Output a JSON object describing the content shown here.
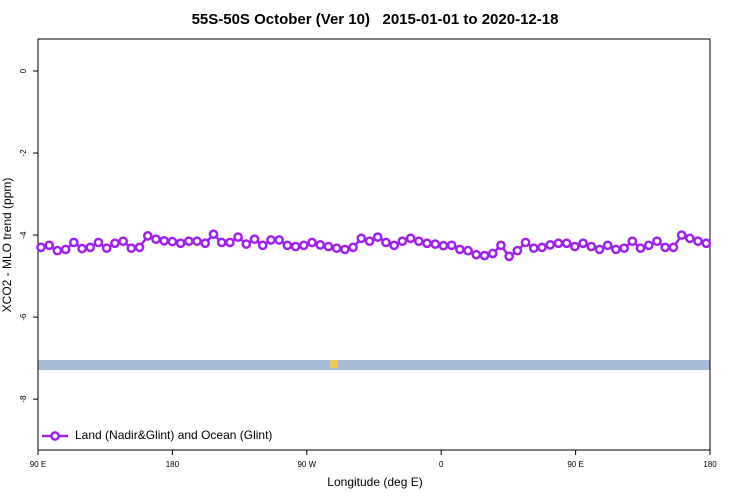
{
  "chart_data": {
    "type": "line",
    "title": "55S-50S October (Ver 10)   2015-01-01 to 2020-12-18",
    "xlabel": "Longitude (deg E)",
    "ylabel": "XCO2 - MLO trend (ppm)",
    "xlim": [
      90,
      540
    ],
    "xticks": [
      {
        "value": 90,
        "label": "90 E"
      },
      180,
      {
        "value": 270,
        "label": "90 W"
      },
      {
        "value": 360,
        "label": "0"
      },
      {
        "value": 450,
        "label": "90 E"
      },
      {
        "value": 540,
        "label": "180"
      }
    ],
    "ylim": [
      -9.24,
      0.78
    ],
    "yticks": [
      0,
      -2,
      -4,
      -6,
      -8
    ],
    "legend": "bottom-left",
    "x": [
      92,
      97.5,
      103,
      108.5,
      114,
      119.5,
      125,
      130.5,
      136,
      141.5,
      147,
      152.5,
      158,
      163.5,
      169,
      174.5,
      180,
      185.5,
      191,
      196.5,
      202,
      207.5,
      213,
      218.5,
      224,
      229.5,
      235,
      240.5,
      246,
      251.5,
      257,
      262.5,
      268,
      273.5,
      279,
      284.5,
      290,
      295.5,
      301,
      306.5,
      312,
      317.5,
      323,
      328.5,
      334,
      339.5,
      345,
      350.5,
      356,
      361.5,
      367,
      372.5,
      378,
      383.5,
      389,
      394.5,
      400,
      405.5,
      411,
      416.5,
      422,
      427.5,
      433,
      438.5,
      444,
      449.5,
      455,
      460.5,
      466,
      471.5,
      477,
      482.5,
      488,
      493.5,
      499,
      504.5,
      510,
      515.5,
      521,
      526.5,
      532,
      537.5
    ],
    "series": [
      {
        "name": "Land (Nadir&Glint) and Ocean (Glint)",
        "color": "#a020f0",
        "values": [
          -4.3,
          -4.25,
          -4.38,
          -4.35,
          -4.18,
          -4.33,
          -4.3,
          -4.18,
          -4.32,
          -4.2,
          -4.15,
          -4.32,
          -4.3,
          -4.02,
          -4.1,
          -4.14,
          -4.16,
          -4.2,
          -4.15,
          -4.15,
          -4.2,
          -3.98,
          -4.18,
          -4.18,
          -4.05,
          -4.22,
          -4.1,
          -4.25,
          -4.12,
          -4.12,
          -4.25,
          -4.28,
          -4.25,
          -4.18,
          -4.24,
          -4.28,
          -4.32,
          -4.35,
          -4.3,
          -4.08,
          -4.15,
          -4.05,
          -4.18,
          -4.25,
          -4.15,
          -4.08,
          -4.15,
          -4.2,
          -4.22,
          -4.26,
          -4.25,
          -4.35,
          -4.38,
          -4.48,
          -4.5,
          -4.45,
          -4.25,
          -4.52,
          -4.38,
          -4.18,
          -4.32,
          -4.3,
          -4.24,
          -4.2,
          -4.2,
          -4.28,
          -4.2,
          -4.28,
          -4.35,
          -4.25,
          -4.35,
          -4.32,
          -4.15,
          -4.32,
          -4.25,
          -4.15,
          -4.3,
          -4.3,
          -4.0,
          -4.08,
          -4.15,
          -4.2
        ]
      }
    ]
  }
}
